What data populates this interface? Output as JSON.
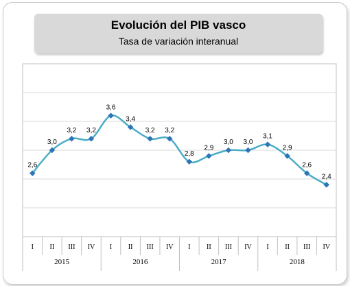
{
  "chart_data": {
    "type": "line",
    "title": "Evolución del PIB vasco",
    "subtitle": "Tasa de variación interanual",
    "categories": [
      "I",
      "II",
      "III",
      "IV",
      "I",
      "II",
      "III",
      "IV",
      "I",
      "II",
      "III",
      "IV",
      "I",
      "II",
      "III",
      "IV"
    ],
    "years": [
      "2015",
      "2016",
      "2017",
      "2018"
    ],
    "values": [
      2.6,
      3.0,
      3.2,
      3.2,
      3.6,
      3.4,
      3.2,
      3.2,
      2.8,
      2.9,
      3.0,
      3.0,
      3.1,
      2.9,
      2.6,
      2.4
    ],
    "value_labels": [
      "2,6",
      "3,0",
      "3,2",
      "3,2",
      "3,6",
      "3,4",
      "3,2",
      "3,2",
      "2,8",
      "2,9",
      "3,0",
      "3,0",
      "3,1",
      "2,9",
      "2,6",
      "2,4"
    ],
    "ylim": [
      1.5,
      4.5
    ],
    "grid": true,
    "line_color": "#4bacc6",
    "marker_color": "#2e75b6"
  }
}
